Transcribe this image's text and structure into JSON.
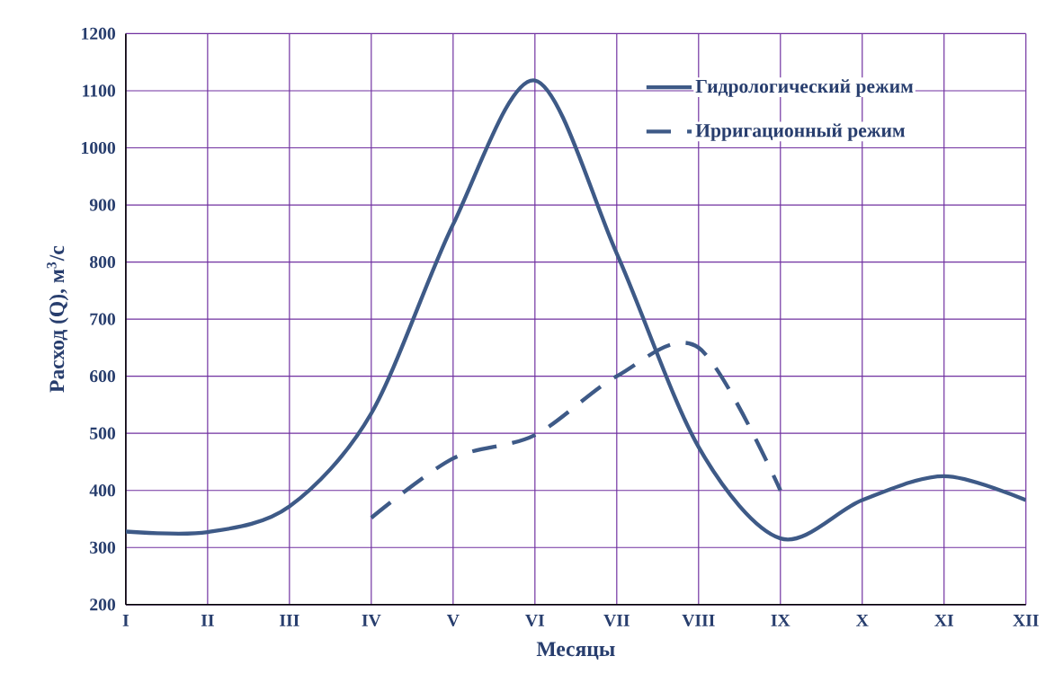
{
  "chart_data": {
    "type": "line",
    "xlabel": "Месяцы",
    "ylabel": "Расход (Q), м$^{3}$/с",
    "categories": [
      "I",
      "II",
      "III",
      "IV",
      "V",
      "VI",
      "VII",
      "VIII",
      "IX",
      "X",
      "XI",
      "XII"
    ],
    "ylim": [
      200,
      1200
    ],
    "yticks": [
      200,
      300,
      400,
      500,
      600,
      700,
      800,
      900,
      1000,
      1100,
      1200
    ],
    "grid": true,
    "legend": "top right",
    "series": [
      {
        "name": "Гидрологический режим",
        "color": "#3e5a87",
        "line_style": "solid",
        "values": [
          328,
          327,
          372,
          535,
          866,
          1118,
          815,
          476,
          316,
          383,
          425,
          383
        ]
      },
      {
        "name": "Ирригационный режим",
        "color": "#3e5a87",
        "line_style": "dashed",
        "values": [
          null,
          null,
          null,
          352,
          456,
          497,
          600,
          650,
          400,
          null,
          null,
          null
        ]
      }
    ]
  }
}
